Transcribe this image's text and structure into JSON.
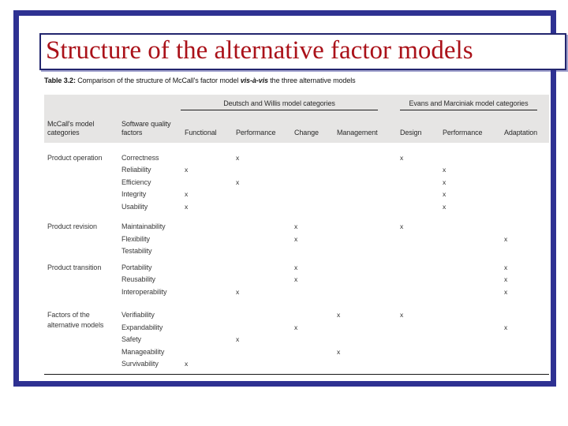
{
  "slide": {
    "title": "Structure of the alternative factor models"
  },
  "caption": {
    "prefix": "Table 3.2: ",
    "middle": "Comparison of the structure of McCall's factor model ",
    "italic": "vis-à-vis",
    "suffix": " the three alternative models"
  },
  "colors": {
    "frame_blue": "#2e3192",
    "title_red": "#aa1119",
    "header_gray": "#e6e5e4"
  },
  "table": {
    "group_headers": [
      {
        "label": "Deutsch and Willis model categories"
      },
      {
        "label": "Evans and Marciniak model categories"
      }
    ],
    "columns": [
      "McCall's model categories",
      "Software quality factors",
      "Functional",
      "Performance",
      "Change",
      "Management",
      "Design",
      "Performance",
      "Adaptation"
    ],
    "mark_symbol": "x",
    "sections": [
      {
        "category": "Product operation",
        "rows": [
          {
            "factor": "Correctness",
            "marks": [
              "",
              "x",
              "",
              "",
              "x",
              "",
              ""
            ]
          },
          {
            "factor": "Reliability",
            "marks": [
              "x",
              "",
              "",
              "",
              "",
              "x",
              ""
            ]
          },
          {
            "factor": "Efficiency",
            "marks": [
              "",
              "x",
              "",
              "",
              "",
              "x",
              ""
            ]
          },
          {
            "factor": "Integrity",
            "marks": [
              "x",
              "",
              "",
              "",
              "",
              "x",
              ""
            ]
          },
          {
            "factor": "Usability",
            "marks": [
              "x",
              "",
              "",
              "",
              "",
              "x",
              ""
            ]
          }
        ]
      },
      {
        "category": "Product revision",
        "rows": [
          {
            "factor": "Maintainability",
            "marks": [
              "",
              "",
              "x",
              "",
              "x",
              "",
              ""
            ]
          },
          {
            "factor": "Flexibility",
            "marks": [
              "",
              "",
              "x",
              "",
              "",
              "",
              "x"
            ]
          },
          {
            "factor": "Testability",
            "marks": [
              "",
              "",
              "",
              "",
              "",
              "",
              ""
            ]
          }
        ]
      },
      {
        "category": "Product transition",
        "rows": [
          {
            "factor": "Portability",
            "marks": [
              "",
              "",
              "x",
              "",
              "",
              "",
              "x"
            ]
          },
          {
            "factor": "Reusability",
            "marks": [
              "",
              "",
              "x",
              "",
              "",
              "",
              "x"
            ]
          },
          {
            "factor": "Interoperability",
            "marks": [
              "",
              "x",
              "",
              "",
              "",
              "",
              "x"
            ]
          }
        ]
      },
      {
        "category": "Factors of the alternative models",
        "rows": [
          {
            "factor": "Verifiability",
            "marks": [
              "",
              "",
              "",
              "x",
              "x",
              "",
              ""
            ]
          },
          {
            "factor": "Expandability",
            "marks": [
              "",
              "",
              "x",
              "",
              "",
              "",
              "x"
            ]
          },
          {
            "factor": "Safety",
            "marks": [
              "",
              "x",
              "",
              "",
              "",
              "",
              ""
            ]
          },
          {
            "factor": "Manageability",
            "marks": [
              "",
              "",
              "",
              "x",
              "",
              "",
              ""
            ]
          },
          {
            "factor": "Survivability",
            "marks": [
              "x",
              "",
              "",
              "",
              "",
              "",
              ""
            ]
          }
        ]
      }
    ]
  }
}
